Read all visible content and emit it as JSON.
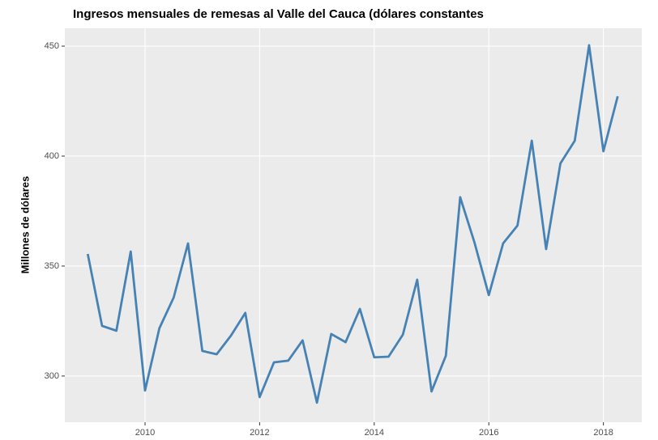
{
  "chart_data": {
    "type": "line",
    "title": "Ingresos mensuales de remesas al Valle del Cauca (dólares constantes",
    "y_label": "Millones de dólares",
    "x": [
      2009,
      2009.25,
      2009.5,
      2009.75,
      2010,
      2010.25,
      2010.5,
      2010.75,
      2011,
      2011.25,
      2011.5,
      2011.75,
      2012,
      2012.25,
      2012.5,
      2012.75,
      2013,
      2013.25,
      2013.5,
      2013.75,
      2014,
      2014.25,
      2014.5,
      2014.75,
      2015,
      2015.25,
      2015.5,
      2015.75,
      2016,
      2016.25,
      2016.5,
      2016.75,
      2017,
      2017.25,
      2017.5,
      2017.75,
      2018,
      2018.25
    ],
    "values": [
      355.5,
      322.8,
      320.6,
      356.6,
      293.4,
      321.7,
      335.7,
      360.3,
      311.4,
      309.9,
      318.4,
      328.7,
      290.4,
      306.2,
      307,
      316.2,
      287.9,
      319.1,
      315.4,
      330.5,
      308.5,
      308.8,
      318.8,
      343.8,
      293,
      309.2,
      381.3,
      360.7,
      336.8,
      360.3,
      368.4,
      407,
      357.7,
      396.7,
      407,
      450.4,
      402.2,
      427.2
    ],
    "color": "#4682b4",
    "xlim": [
      2008.6,
      2018.67
    ],
    "xticks": [
      2010,
      2012,
      2014,
      2016,
      2018
    ],
    "ylim": [
      279,
      458.1
    ],
    "yticks": [
      300,
      350,
      400,
      450
    ],
    "grid": true
  }
}
